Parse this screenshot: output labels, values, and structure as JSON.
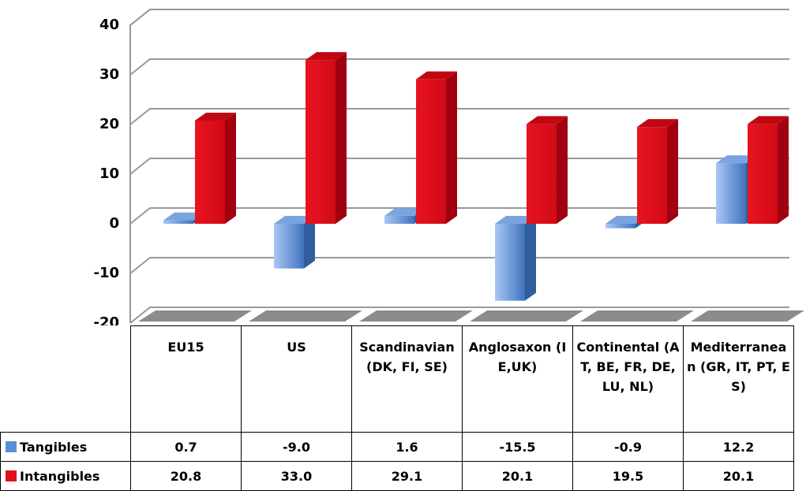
{
  "chart_data": {
    "type": "bar",
    "categories": [
      "EU15",
      "US",
      "Scandinavian (DK, FI, SE)",
      "Anglosaxon (IE,UK)",
      "Continental (AT, BE, FR, DE, LU, NL)",
      "Mediterranean (GR, IT, PT, ES)"
    ],
    "series": [
      {
        "name": "Tangibles",
        "color": "#5b8fd6",
        "values": [
          0.7,
          -9,
          1.6,
          -15.5,
          -0.9,
          12.2
        ],
        "value_labels": [
          "0.7",
          "-9.0",
          "1.6",
          "-15.5",
          "-0.9",
          "12.2"
        ]
      },
      {
        "name": "Intangibles",
        "color": "#e0101e",
        "values": [
          20.8,
          33,
          29.1,
          20.1,
          19.5,
          20.1
        ],
        "value_labels": [
          "20.8",
          "33.0",
          "29.1",
          "20.1",
          "19.5",
          "20.1"
        ]
      }
    ],
    "ylim": [
      -20,
      40
    ],
    "yticks": [
      -20,
      -10,
      0,
      10,
      20,
      30,
      40
    ],
    "grid": true
  }
}
